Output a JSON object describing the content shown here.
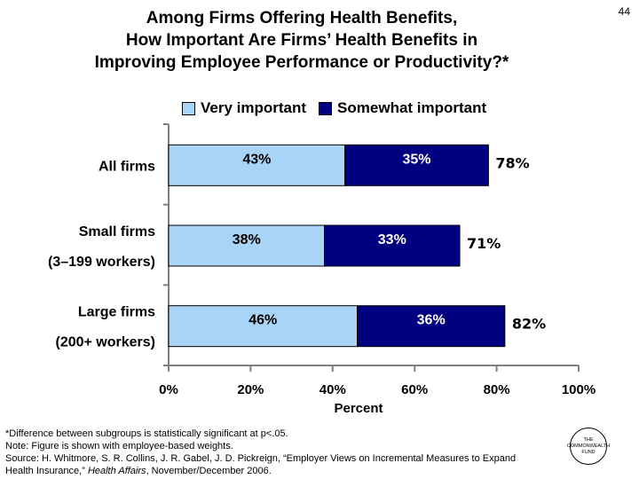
{
  "page_number": "44",
  "title_lines": [
    "Among Firms Offering Health Benefits,",
    "How Important Are Firms’ Health Benefits in",
    "Improving Employee Performance or Productivity?*"
  ],
  "colors": {
    "very": "#a9d4f5",
    "somewhat": "#000080",
    "axis": "#7f7f7f"
  },
  "chart_data": {
    "type": "bar",
    "orientation": "horizontal",
    "stacked": true,
    "categories": [
      [
        "All firms"
      ],
      [
        "Small firms",
        "(3–199 workers)"
      ],
      [
        "Large firms",
        "(200+ workers)"
      ]
    ],
    "series": [
      {
        "name": "Very important",
        "values": [
          43,
          38,
          46
        ],
        "labels": [
          "43%",
          "38%",
          "46%"
        ]
      },
      {
        "name": "Somewhat important",
        "values": [
          35,
          33,
          36
        ],
        "labels": [
          "35%",
          "33%",
          "36%"
        ]
      }
    ],
    "totals": [
      "78%",
      "71%",
      "82%"
    ],
    "xlabel": "Percent",
    "xlim": [
      0,
      100
    ],
    "xticks": [
      0,
      20,
      40,
      60,
      80,
      100
    ],
    "xtick_labels": [
      "0%",
      "20%",
      "40%",
      "60%",
      "80%",
      "100%"
    ],
    "legend": "top"
  },
  "notes": {
    "line1": "*Difference between subgroups is statistically significant at p<.05.",
    "line2": "Note: Figure is shown with employee-based weights.",
    "line3": "Source: H. Whitmore, S. R. Collins, J. R. Gabel, J. D. Pickreign, “Employer Views on Incremental Measures to Expand",
    "line4_prefix": "Health Insurance,” ",
    "line4_journal": "Health Affairs",
    "line4_suffix": ", November/December 2006."
  },
  "logo": {
    "line1": "THE",
    "line2": "COMMONWEALTH",
    "line3": "FUND"
  }
}
